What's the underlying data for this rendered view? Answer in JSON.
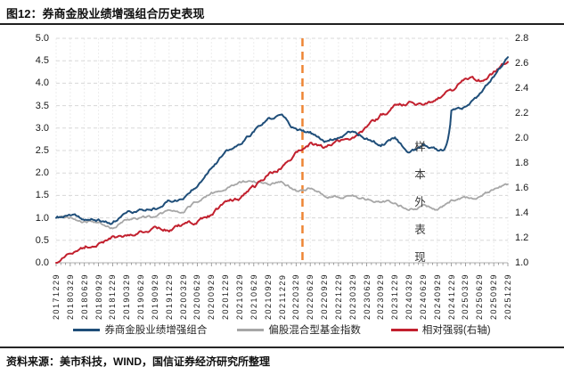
{
  "header": {
    "title": "图12：券商金股业绩增强组合历史表现"
  },
  "footer": {
    "source": "资料来源：美市科技，WIND，国信证券经济研究所整理"
  },
  "chart_data": {
    "type": "line",
    "title": "券商金股业绩增强组合历史表现",
    "categories": [
      "20171229",
      "20180329",
      "20180629",
      "20180929",
      "20181229",
      "20190329",
      "20190629",
      "20190929",
      "20191229",
      "20200329",
      "20200629",
      "20200929",
      "20201229",
      "20210329",
      "20210629",
      "20210929",
      "20211229",
      "20220329",
      "20220629",
      "20220929",
      "20221229",
      "20230329",
      "20230629",
      "20230929",
      "20231229",
      "20240329",
      "20240629",
      "20240929",
      "20241229",
      "20250329",
      "20250629",
      "20250929",
      "20251229"
    ],
    "series": [
      {
        "name": "券商金股业绩增强组合",
        "axis": "left",
        "color": "#1f4e79",
        "values": [
          1.0,
          1.05,
          0.96,
          0.94,
          0.88,
          1.12,
          1.16,
          1.22,
          1.38,
          1.42,
          1.75,
          2.15,
          2.45,
          2.62,
          2.92,
          3.18,
          3.28,
          2.95,
          2.88,
          2.72,
          2.8,
          2.95,
          2.78,
          2.62,
          2.8,
          2.45,
          2.62,
          2.5,
          3.35,
          3.45,
          3.72,
          4.15,
          4.58
        ]
      },
      {
        "name": "偏股混合型基金指数",
        "axis": "left",
        "color": "#a7a7a7",
        "values": [
          1.0,
          1.0,
          0.92,
          0.88,
          0.76,
          0.98,
          1.0,
          1.04,
          1.15,
          1.12,
          1.38,
          1.55,
          1.62,
          1.82,
          1.8,
          1.78,
          1.82,
          1.62,
          1.68,
          1.52,
          1.46,
          1.5,
          1.42,
          1.38,
          1.32,
          1.2,
          1.26,
          1.18,
          1.38,
          1.42,
          1.48,
          1.62,
          1.75
        ]
      },
      {
        "name": "相对强弱(右轴)",
        "axis": "right",
        "color": "#c2202e",
        "values": [
          1.0,
          1.08,
          1.13,
          1.16,
          1.2,
          1.22,
          1.26,
          1.28,
          1.26,
          1.3,
          1.33,
          1.38,
          1.48,
          1.52,
          1.6,
          1.7,
          1.78,
          1.88,
          1.95,
          1.92,
          1.96,
          2.02,
          2.08,
          2.18,
          2.25,
          2.28,
          2.27,
          2.32,
          2.38,
          2.48,
          2.46,
          2.53,
          2.61
        ]
      }
    ],
    "left_axis": {
      "min": 0.0,
      "max": 5.0,
      "step": 0.5,
      "ticks": [
        "5.0",
        "4.5",
        "4.0",
        "3.5",
        "3.0",
        "2.5",
        "2.0",
        "1.5",
        "1.0",
        "0.5",
        "0.0"
      ]
    },
    "right_axis": {
      "min": 1.0,
      "max": 2.8,
      "step": 0.2,
      "ticks": [
        "2.8",
        "2.6",
        "2.4",
        "2.2",
        "2.0",
        "1.8",
        "1.6",
        "1.4",
        "1.2",
        "1.0"
      ]
    },
    "grid": {
      "horizontal": "dashed",
      "vertical": "faint-dashed"
    },
    "legend_position": "bottom",
    "annotations": {
      "vline": {
        "after_category": "20220329",
        "color": "#ee8534",
        "style": "dashed"
      },
      "text": {
        "value": "样本外表现",
        "orientation": "vertical"
      }
    }
  }
}
